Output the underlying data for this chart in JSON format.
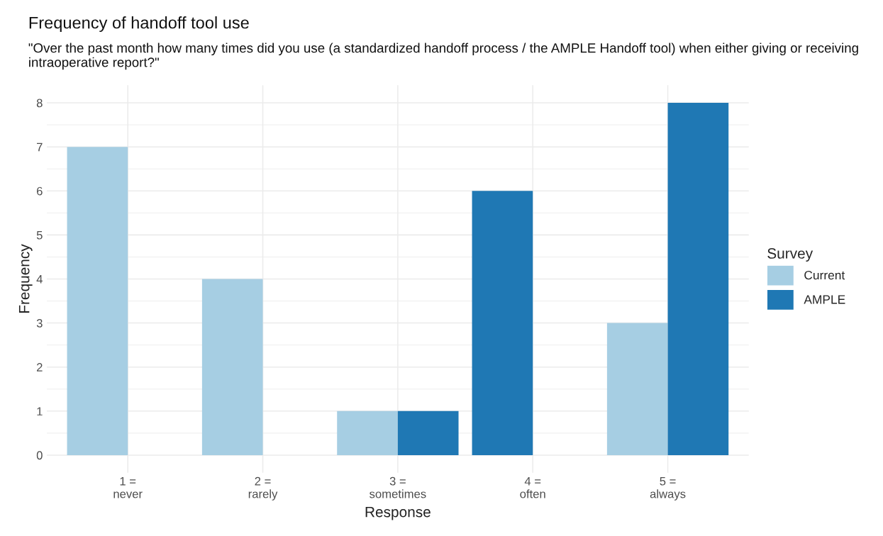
{
  "chart_data": {
    "type": "bar",
    "title": "Frequency of handoff tool use",
    "subtitle": "\"Over the past month how many times did you use (a standardized handoff process / the AMPLE Handoff tool) when either giving or receiving intraoperative report?\"",
    "xlabel": "Response",
    "ylabel": "Frequency",
    "legend_title": "Survey",
    "categories": [
      "1 =\nnever",
      "2 =\nrarely",
      "3 =\nsometimes",
      "4 =\noften",
      "5 =\nalways"
    ],
    "series": [
      {
        "name": "Current",
        "color": "#a6cee3",
        "values": [
          7,
          4,
          1,
          null,
          3
        ]
      },
      {
        "name": "AMPLE",
        "color": "#1f78b4",
        "values": [
          null,
          null,
          1,
          6,
          8
        ]
      }
    ],
    "ylim": [
      -0.4,
      8.4
    ],
    "yticks": [
      0,
      1,
      2,
      3,
      4,
      5,
      6,
      7,
      8
    ],
    "grid": true,
    "legend": "right"
  }
}
